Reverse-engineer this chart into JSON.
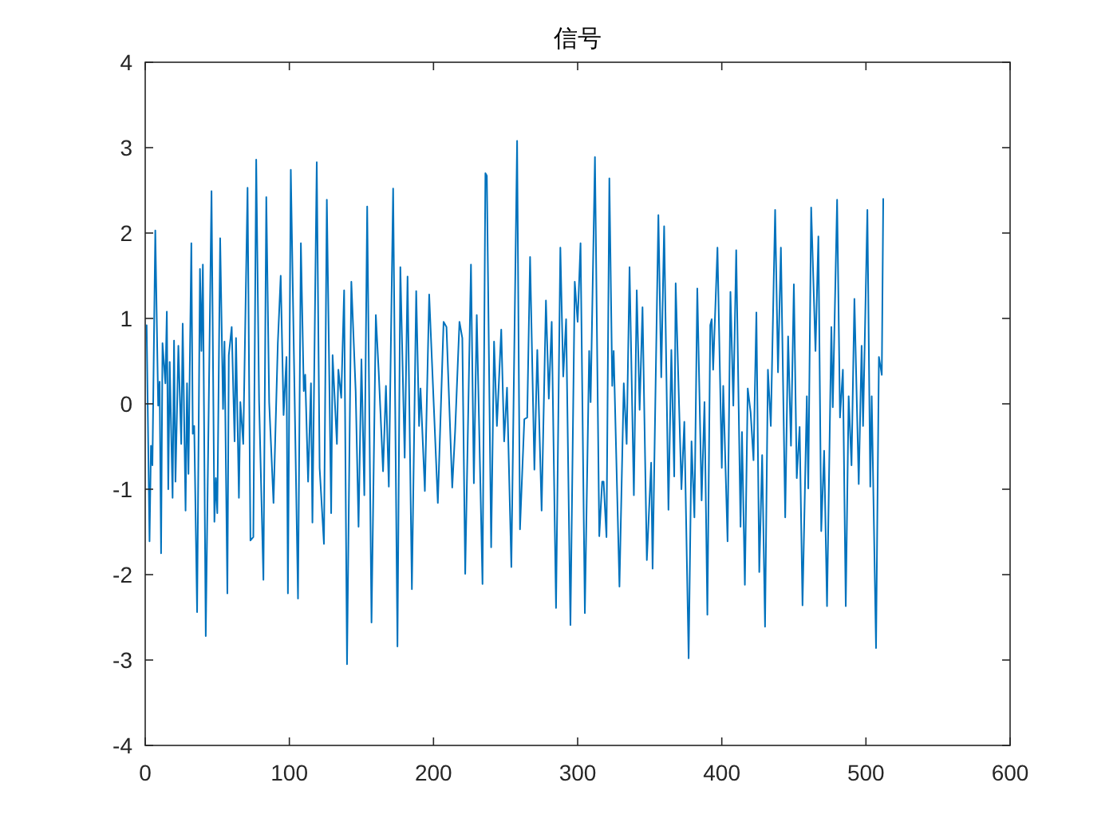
{
  "chart_data": {
    "type": "line",
    "title": "信号",
    "color": "#0072bd",
    "xlim": [
      0,
      600
    ],
    "ylim": [
      -4,
      4
    ],
    "xticks": [
      0,
      100,
      200,
      300,
      400,
      500,
      600
    ],
    "yticks": [
      -4,
      -3,
      -2,
      -1,
      0,
      1,
      2,
      3,
      4
    ],
    "x": [
      1,
      3,
      4,
      5,
      7,
      9,
      10,
      11,
      12,
      14,
      15,
      16,
      17,
      19,
      20,
      21,
      23,
      25,
      26,
      28,
      29,
      30,
      32,
      33,
      34,
      36,
      38,
      39,
      40,
      42,
      46,
      48,
      49,
      50,
      52,
      54,
      55,
      57,
      58,
      60,
      62,
      63,
      65,
      66,
      68,
      71,
      73,
      75,
      77,
      79,
      82,
      84,
      86,
      89,
      92,
      94,
      96,
      98,
      99,
      101,
      106,
      108,
      110,
      111,
      113,
      115,
      116,
      119,
      121,
      124,
      126,
      129,
      130,
      133,
      134,
      136,
      138,
      140,
      143,
      146,
      148,
      150,
      152,
      154,
      157,
      160,
      162,
      165,
      167,
      169,
      172,
      175,
      177,
      180,
      182,
      185,
      188,
      190,
      191,
      194,
      197,
      203,
      207,
      209,
      213,
      215,
      218,
      220,
      222,
      226,
      228,
      230,
      234,
      236,
      237,
      240,
      242,
      244,
      247,
      249,
      251,
      254,
      258,
      260,
      263,
      265,
      267,
      270,
      272,
      275,
      278,
      280,
      282,
      285,
      288,
      290,
      292,
      295,
      298,
      300,
      302,
      305,
      308,
      309,
      312,
      315,
      317,
      318,
      320,
      322,
      324,
      325,
      329,
      332,
      334,
      336,
      339,
      341,
      343,
      345,
      348,
      351,
      352,
      356,
      358,
      360,
      363,
      365,
      367,
      368,
      372,
      374,
      377,
      379,
      381,
      383,
      386,
      388,
      390,
      392,
      393,
      394,
      397,
      400,
      401,
      404,
      406,
      408,
      410,
      413,
      414,
      416,
      418,
      420,
      422,
      424,
      426,
      428,
      430,
      432,
      434,
      437,
      439,
      441,
      444,
      446,
      448,
      450,
      452,
      454,
      456,
      459,
      460,
      462,
      465,
      467,
      469,
      471,
      473,
      476,
      477,
      480,
      482,
      484,
      486,
      488,
      490,
      492,
      495,
      497,
      498,
      501,
      503,
      504,
      507,
      509,
      511,
      512
    ],
    "values": [
      0.92,
      -1.61,
      -0.49,
      -0.72,
      2.03,
      -0.02,
      0.26,
      -1.75,
      0.71,
      0.24,
      1.08,
      -1.0,
      0.49,
      -1.1,
      0.74,
      -0.91,
      0.68,
      -0.47,
      0.94,
      -1.25,
      0.24,
      -0.82,
      1.88,
      -0.35,
      -0.26,
      -2.44,
      1.58,
      0.62,
      1.63,
      -2.72,
      2.49,
      -1.38,
      -0.87,
      -1.28,
      1.94,
      -0.06,
      0.73,
      -2.22,
      0.57,
      0.9,
      -0.44,
      0.77,
      -1.1,
      0.02,
      -0.47,
      2.53,
      -1.6,
      -1.56,
      2.86,
      0.04,
      -2.06,
      2.42,
      0.02,
      -1.16,
      0.71,
      1.5,
      -0.13,
      0.55,
      -2.22,
      2.74,
      -2.28,
      1.88,
      0.15,
      0.34,
      -0.91,
      0.24,
      -1.39,
      2.83,
      -0.75,
      -1.64,
      2.39,
      -1.28,
      0.57,
      -0.47,
      0.4,
      0.07,
      1.33,
      -3.05,
      1.43,
      0.15,
      -1.44,
      0.52,
      -1.07,
      2.31,
      -2.56,
      1.04,
      0.37,
      -0.79,
      0.21,
      -0.97,
      2.52,
      -2.84,
      1.6,
      -0.63,
      1.49,
      -2.17,
      1.32,
      -0.26,
      0.18,
      -1.02,
      1.28,
      -1.16,
      0.96,
      0.9,
      -0.98,
      -0.32,
      0.96,
      0.77,
      -1.99,
      1.63,
      -0.93,
      1.04,
      -2.11,
      2.7,
      2.67,
      -1.68,
      0.73,
      -0.26,
      0.87,
      -0.44,
      0.19,
      -1.91,
      3.08,
      -1.47,
      -0.18,
      -0.16,
      1.72,
      -0.77,
      0.63,
      -1.25,
      1.21,
      0.06,
      0.96,
      -2.39,
      1.83,
      0.32,
      0.99,
      -2.59,
      1.43,
      0.96,
      1.88,
      -2.45,
      0.62,
      0.02,
      2.89,
      -1.55,
      -0.91,
      -0.91,
      -1.56,
      2.64,
      0.21,
      0.62,
      -2.14,
      0.24,
      -0.47,
      1.6,
      -1.07,
      1.33,
      -0.07,
      1.13,
      -1.83,
      -0.69,
      -1.93,
      2.21,
      0.31,
      2.08,
      -1.24,
      0.63,
      -0.85,
      1.41,
      -1.0,
      -0.21,
      -2.98,
      -0.44,
      -1.33,
      1.35,
      -1.13,
      0.02,
      -2.47,
      0.92,
      0.99,
      0.4,
      1.83,
      -0.75,
      0.21,
      -1.61,
      1.31,
      -0.02,
      1.8,
      -1.44,
      -0.33,
      -2.12,
      0.18,
      -0.1,
      -0.66,
      1.07,
      -1.97,
      -0.6,
      -2.61,
      0.4,
      -0.26,
      2.27,
      0.37,
      1.83,
      -1.33,
      0.79,
      -0.49,
      1.4,
      -0.87,
      -0.27,
      -2.36,
      0.09,
      -0.99,
      2.3,
      0.62,
      1.96,
      -1.49,
      -0.55,
      -2.37,
      0.9,
      -0.04,
      2.39,
      -0.16,
      0.4,
      -2.37,
      0.09,
      -0.72,
      1.23,
      -0.94,
      0.68,
      -0.26,
      2.27,
      -0.97,
      0.09,
      -2.86,
      0.55,
      0.34,
      2.4
    ]
  }
}
